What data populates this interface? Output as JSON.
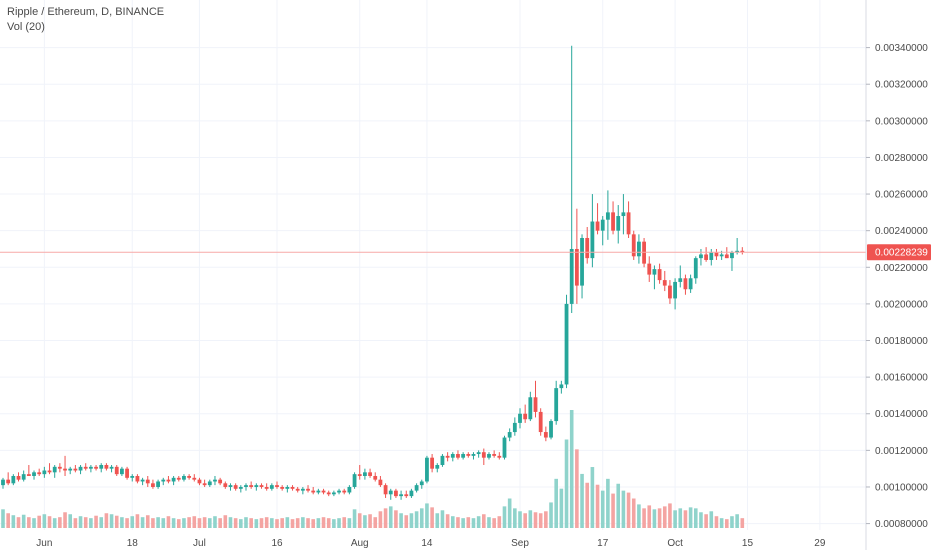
{
  "legend": {
    "symbol": "Ripple / Ethereum, D, BINANCE",
    "volume": "Vol (20)"
  },
  "colors": {
    "up": "#26a69a",
    "down": "#ef5350",
    "up_volume": "#8fd3cb",
    "down_volume": "#f4a4a2",
    "grid": "#f0f3fa",
    "axis": "#4a4a4a",
    "price_line": "#f7a9a7",
    "price_tag": "#ef5350"
  },
  "chart_data": {
    "type": "candlestick",
    "title": "Ripple / Ethereum, D, BINANCE",
    "indicator": "Vol (20)",
    "y_ticks": [
      0.0008,
      0.001,
      0.0012,
      0.0014,
      0.0016,
      0.0018,
      0.002,
      0.0022,
      0.0024,
      0.0026,
      0.0028,
      0.003,
      0.0032,
      0.0034
    ],
    "y_tick_labels": [
      "0.00080000",
      "0.00100000",
      "0.00120000",
      "0.00140000",
      "0.00160000",
      "0.00180000",
      "0.00200000",
      "0.00220000",
      "0.00240000",
      "0.00260000",
      "0.00280000",
      "0.00300000",
      "0.00320000",
      "0.00340000"
    ],
    "ylim": [
      0.000765,
      0.00366
    ],
    "x_ticks": [
      {
        "index": 8,
        "label": "Jun"
      },
      {
        "index": 25,
        "label": "18"
      },
      {
        "index": 38,
        "label": "Jul"
      },
      {
        "index": 53,
        "label": "16"
      },
      {
        "index": 69,
        "label": "Aug"
      },
      {
        "index": 82,
        "label": "14"
      },
      {
        "index": 100,
        "label": "Sep"
      },
      {
        "index": 116,
        "label": "17"
      },
      {
        "index": 130,
        "label": "Oct"
      },
      {
        "index": 144,
        "label": "15"
      },
      {
        "index": 158,
        "label": "29"
      }
    ],
    "last_price": 0.00228239,
    "last_price_label": "0.00228239",
    "candles": [
      [
        0.00101,
        0.00105,
        0.00099,
        0.00104,
        38
      ],
      [
        0.00104,
        0.00108,
        0.00101,
        0.00102,
        30
      ],
      [
        0.00102,
        0.00107,
        0.00101,
        0.00106,
        26
      ],
      [
        0.00106,
        0.00108,
        0.00103,
        0.00104,
        22
      ],
      [
        0.00104,
        0.00109,
        0.00103,
        0.00107,
        27
      ],
      [
        0.00107,
        0.00112,
        0.00106,
        0.00106,
        22
      ],
      [
        0.00106,
        0.00109,
        0.00104,
        0.00108,
        20
      ],
      [
        0.00108,
        0.0011,
        0.00106,
        0.00107,
        25
      ],
      [
        0.00107,
        0.00111,
        0.00105,
        0.00109,
        28
      ],
      [
        0.00109,
        0.00113,
        0.00107,
        0.00108,
        24
      ],
      [
        0.00108,
        0.00112,
        0.00105,
        0.00111,
        20
      ],
      [
        0.00111,
        0.00113,
        0.00108,
        0.0011,
        22
      ],
      [
        0.0011,
        0.00117,
        0.00106,
        0.00109,
        32
      ],
      [
        0.00109,
        0.00111,
        0.00107,
        0.0011,
        28
      ],
      [
        0.0011,
        0.00112,
        0.00108,
        0.00109,
        20
      ],
      [
        0.00109,
        0.00112,
        0.00107,
        0.00111,
        24
      ],
      [
        0.00111,
        0.00113,
        0.00109,
        0.0011,
        22
      ],
      [
        0.0011,
        0.00112,
        0.00108,
        0.00111,
        20
      ],
      [
        0.00111,
        0.00112,
        0.00109,
        0.0011,
        25
      ],
      [
        0.0011,
        0.00113,
        0.00108,
        0.00112,
        22
      ],
      [
        0.00112,
        0.00113,
        0.00109,
        0.0011,
        30
      ],
      [
        0.0011,
        0.00112,
        0.00108,
        0.00111,
        28
      ],
      [
        0.00111,
        0.00112,
        0.00106,
        0.00107,
        25
      ],
      [
        0.00107,
        0.00111,
        0.00106,
        0.0011,
        22
      ],
      [
        0.0011,
        0.00111,
        0.00104,
        0.00105,
        20
      ],
      [
        0.00105,
        0.00107,
        0.00103,
        0.00106,
        24
      ],
      [
        0.00106,
        0.00107,
        0.00102,
        0.00103,
        28
      ],
      [
        0.00103,
        0.00105,
        0.00101,
        0.00104,
        22
      ],
      [
        0.00104,
        0.00106,
        0.001,
        0.00102,
        26
      ],
      [
        0.00102,
        0.00104,
        0.00099,
        0.001,
        20
      ],
      [
        0.001,
        0.00104,
        0.00099,
        0.00103,
        22
      ],
      [
        0.00103,
        0.00105,
        0.00101,
        0.00104,
        20
      ],
      [
        0.00104,
        0.00106,
        0.00102,
        0.00103,
        24
      ],
      [
        0.00103,
        0.00106,
        0.00101,
        0.00105,
        20
      ],
      [
        0.00105,
        0.00106,
        0.00103,
        0.00104,
        18
      ],
      [
        0.00104,
        0.00107,
        0.00103,
        0.00106,
        20
      ],
      [
        0.00106,
        0.00107,
        0.00104,
        0.00105,
        22
      ],
      [
        0.00105,
        0.00107,
        0.00103,
        0.00104,
        24
      ],
      [
        0.00104,
        0.00105,
        0.00101,
        0.00102,
        20
      ],
      [
        0.00102,
        0.00104,
        0.001,
        0.00101,
        22
      ],
      [
        0.00101,
        0.00104,
        0.001,
        0.00103,
        20
      ],
      [
        0.00103,
        0.00106,
        0.00101,
        0.00104,
        24
      ],
      [
        0.00104,
        0.00105,
        0.00101,
        0.00102,
        20
      ],
      [
        0.00102,
        0.00103,
        0.00099,
        0.001,
        26
      ],
      [
        0.001,
        0.00102,
        0.00098,
        0.00101,
        22
      ],
      [
        0.00101,
        0.00102,
        0.00098,
        0.00099,
        20
      ],
      [
        0.00099,
        0.00101,
        0.00097,
        0.001,
        18
      ],
      [
        0.001,
        0.00102,
        0.00098,
        0.00101,
        22
      ],
      [
        0.00101,
        0.00103,
        0.00099,
        0.001,
        20
      ],
      [
        0.001,
        0.00102,
        0.00098,
        0.00101,
        18
      ],
      [
        0.00101,
        0.00102,
        0.00099,
        0.001,
        20
      ],
      [
        0.001,
        0.00102,
        0.00098,
        0.00099,
        22
      ],
      [
        0.00099,
        0.00102,
        0.00098,
        0.00101,
        20
      ],
      [
        0.00101,
        0.00103,
        0.00099,
        0.001,
        18
      ],
      [
        0.001,
        0.00101,
        0.00098,
        0.00099,
        20
      ],
      [
        0.00099,
        0.00101,
        0.00097,
        0.001,
        22
      ],
      [
        0.001,
        0.00101,
        0.00098,
        0.00099,
        18
      ],
      [
        0.00099,
        0.001,
        0.00097,
        0.00098,
        20
      ],
      [
        0.00098,
        0.001,
        0.00096,
        0.00099,
        22
      ],
      [
        0.00099,
        0.00101,
        0.00097,
        0.00098,
        20
      ],
      [
        0.00098,
        0.001,
        0.00096,
        0.00097,
        18
      ],
      [
        0.00097,
        0.00099,
        0.00096,
        0.00098,
        20
      ],
      [
        0.00098,
        0.00099,
        0.00096,
        0.00097,
        22
      ],
      [
        0.00097,
        0.00098,
        0.00095,
        0.00096,
        20
      ],
      [
        0.00096,
        0.00098,
        0.00095,
        0.00097,
        18
      ],
      [
        0.00097,
        0.00099,
        0.00096,
        0.00098,
        20
      ],
      [
        0.00098,
        0.00099,
        0.00096,
        0.00097,
        22
      ],
      [
        0.00097,
        0.00101,
        0.00096,
        0.001,
        20
      ],
      [
        0.001,
        0.00108,
        0.00099,
        0.00107,
        38
      ],
      [
        0.00107,
        0.00112,
        0.00104,
        0.00106,
        30
      ],
      [
        0.00106,
        0.0011,
        0.00104,
        0.00108,
        26
      ],
      [
        0.00108,
        0.0011,
        0.00105,
        0.00106,
        28
      ],
      [
        0.00106,
        0.00108,
        0.00103,
        0.00104,
        22
      ],
      [
        0.00104,
        0.00106,
        0.001,
        0.00101,
        34
      ],
      [
        0.00101,
        0.00102,
        0.00094,
        0.00096,
        40
      ],
      [
        0.00096,
        0.00099,
        0.00093,
        0.00098,
        44
      ],
      [
        0.00098,
        0.00099,
        0.00094,
        0.00095,
        36
      ],
      [
        0.00095,
        0.00098,
        0.00093,
        0.00096,
        30
      ],
      [
        0.00096,
        0.00098,
        0.00094,
        0.00095,
        26
      ],
      [
        0.00095,
        0.00099,
        0.00094,
        0.00098,
        30
      ],
      [
        0.00098,
        0.00102,
        0.00097,
        0.00101,
        34
      ],
      [
        0.00101,
        0.00104,
        0.00099,
        0.00103,
        40
      ],
      [
        0.00103,
        0.00117,
        0.00102,
        0.00116,
        50
      ],
      [
        0.00116,
        0.00118,
        0.00108,
        0.0011,
        42
      ],
      [
        0.0011,
        0.00113,
        0.00108,
        0.00112,
        30
      ],
      [
        0.00112,
        0.00118,
        0.00111,
        0.00117,
        36
      ],
      [
        0.00117,
        0.00119,
        0.00114,
        0.00116,
        28
      ],
      [
        0.00116,
        0.00119,
        0.00114,
        0.00118,
        24
      ],
      [
        0.00118,
        0.0012,
        0.00115,
        0.00116,
        22
      ],
      [
        0.00116,
        0.00119,
        0.00115,
        0.00118,
        20
      ],
      [
        0.00118,
        0.00119,
        0.00116,
        0.00117,
        22
      ],
      [
        0.00117,
        0.00119,
        0.00115,
        0.00118,
        20
      ],
      [
        0.00118,
        0.0012,
        0.00116,
        0.00119,
        24
      ],
      [
        0.00119,
        0.00121,
        0.00112,
        0.00116,
        28
      ],
      [
        0.00116,
        0.00119,
        0.00115,
        0.00118,
        22
      ],
      [
        0.00118,
        0.0012,
        0.00116,
        0.00117,
        20
      ],
      [
        0.00117,
        0.00119,
        0.00115,
        0.00116,
        24
      ],
      [
        0.00116,
        0.00128,
        0.00115,
        0.00127,
        44
      ],
      [
        0.00127,
        0.00132,
        0.00125,
        0.0013,
        60
      ],
      [
        0.0013,
        0.00138,
        0.00128,
        0.00135,
        40
      ],
      [
        0.00135,
        0.00143,
        0.00132,
        0.0014,
        34
      ],
      [
        0.0014,
        0.00145,
        0.00135,
        0.00137,
        30
      ],
      [
        0.00137,
        0.00152,
        0.00136,
        0.00149,
        36
      ],
      [
        0.00149,
        0.00158,
        0.00138,
        0.00141,
        32
      ],
      [
        0.00141,
        0.00143,
        0.00128,
        0.0013,
        30
      ],
      [
        0.0013,
        0.00133,
        0.00125,
        0.00127,
        34
      ],
      [
        0.00127,
        0.00137,
        0.00126,
        0.00136,
        52
      ],
      [
        0.00136,
        0.00158,
        0.00134,
        0.00154,
        100
      ],
      [
        0.00154,
        0.00158,
        0.00151,
        0.00156,
        80
      ],
      [
        0.00156,
        0.00205,
        0.00154,
        0.002,
        180
      ],
      [
        0.002,
        0.00341,
        0.00195,
        0.0023,
        240
      ],
      [
        0.0023,
        0.00252,
        0.002,
        0.0021,
        160
      ],
      [
        0.0021,
        0.00238,
        0.00203,
        0.00236,
        110
      ],
      [
        0.00236,
        0.00242,
        0.00222,
        0.00225,
        92
      ],
      [
        0.00225,
        0.0026,
        0.0022,
        0.00245,
        124
      ],
      [
        0.00245,
        0.00255,
        0.00238,
        0.0024,
        88
      ],
      [
        0.0024,
        0.00248,
        0.00232,
        0.00246,
        76
      ],
      [
        0.00246,
        0.00262,
        0.00235,
        0.0025,
        100
      ],
      [
        0.0025,
        0.00256,
        0.00238,
        0.0024,
        70
      ],
      [
        0.0024,
        0.00254,
        0.00233,
        0.00248,
        90
      ],
      [
        0.00248,
        0.0026,
        0.00238,
        0.0025,
        76
      ],
      [
        0.0025,
        0.00256,
        0.00236,
        0.00238,
        72
      ],
      [
        0.00238,
        0.0024,
        0.00224,
        0.00226,
        60
      ],
      [
        0.00226,
        0.00238,
        0.00222,
        0.00234,
        48
      ],
      [
        0.00234,
        0.00236,
        0.0022,
        0.00222,
        40
      ],
      [
        0.00222,
        0.00226,
        0.00212,
        0.00216,
        46
      ],
      [
        0.00216,
        0.00221,
        0.00208,
        0.00219,
        38
      ],
      [
        0.00219,
        0.00222,
        0.00211,
        0.00213,
        40
      ],
      [
        0.00213,
        0.00218,
        0.00207,
        0.0021,
        44
      ],
      [
        0.0021,
        0.00213,
        0.002,
        0.00203,
        50
      ],
      [
        0.00203,
        0.00214,
        0.00197,
        0.00212,
        36
      ],
      [
        0.00212,
        0.00221,
        0.00209,
        0.00214,
        40
      ],
      [
        0.00214,
        0.00216,
        0.00205,
        0.00208,
        36
      ],
      [
        0.00208,
        0.00216,
        0.00206,
        0.00214,
        42
      ],
      [
        0.00214,
        0.00226,
        0.00211,
        0.00225,
        40
      ],
      [
        0.00225,
        0.0023,
        0.00221,
        0.00227,
        32
      ],
      [
        0.00227,
        0.00231,
        0.00223,
        0.00224,
        28
      ],
      [
        0.00224,
        0.0023,
        0.00221,
        0.00228,
        34
      ],
      [
        0.00228,
        0.0023,
        0.00224,
        0.00226,
        24
      ],
      [
        0.00226,
        0.00229,
        0.00224,
        0.00227,
        20
      ],
      [
        0.00227,
        0.00231,
        0.00225,
        0.00225,
        18
      ],
      [
        0.00225,
        0.00229,
        0.00218,
        0.00228,
        24
      ],
      [
        0.00228,
        0.00236,
        0.00227,
        0.00229,
        28
      ],
      [
        0.00229,
        0.00231,
        0.00227,
        0.00228239,
        20
      ]
    ]
  }
}
